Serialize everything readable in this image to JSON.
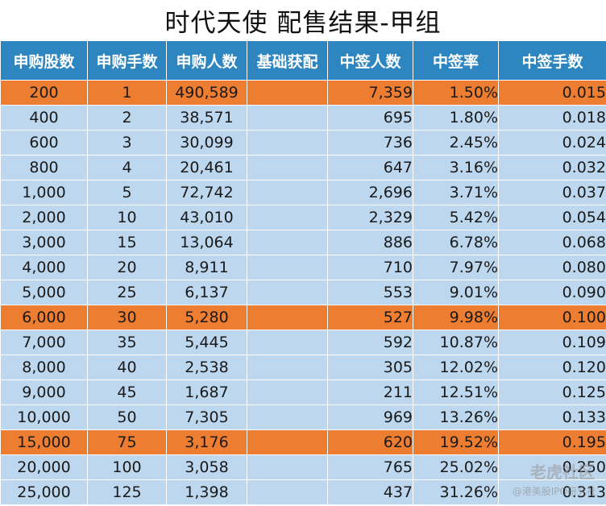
{
  "title": "时代天使 配售结果-甲组",
  "headers": [
    "申购股数",
    "申购手数",
    "申购人数",
    "基础获配",
    "中签人数",
    "中签率",
    "中签手数"
  ],
  "rows": [
    {
      "shares": "200",
      "lots": "1",
      "applicants": "490,589",
      "base": "",
      "winners": "7,359",
      "rate": "1.50%",
      "win_lots": "0.015",
      "highlight": true
    },
    {
      "shares": "400",
      "lots": "2",
      "applicants": "38,571",
      "base": "",
      "winners": "695",
      "rate": "1.80%",
      "win_lots": "0.018",
      "highlight": false
    },
    {
      "shares": "600",
      "lots": "3",
      "applicants": "30,099",
      "base": "",
      "winners": "736",
      "rate": "2.45%",
      "win_lots": "0.024",
      "highlight": false
    },
    {
      "shares": "800",
      "lots": "4",
      "applicants": "20,461",
      "base": "",
      "winners": "647",
      "rate": "3.16%",
      "win_lots": "0.032",
      "highlight": false
    },
    {
      "shares": "1,000",
      "lots": "5",
      "applicants": "72,742",
      "base": "",
      "winners": "2,696",
      "rate": "3.71%",
      "win_lots": "0.037",
      "highlight": false
    },
    {
      "shares": "2,000",
      "lots": "10",
      "applicants": "43,010",
      "base": "",
      "winners": "2,329",
      "rate": "5.42%",
      "win_lots": "0.054",
      "highlight": false
    },
    {
      "shares": "3,000",
      "lots": "15",
      "applicants": "13,064",
      "base": "",
      "winners": "886",
      "rate": "6.78%",
      "win_lots": "0.068",
      "highlight": false
    },
    {
      "shares": "4,000",
      "lots": "20",
      "applicants": "8,911",
      "base": "",
      "winners": "710",
      "rate": "7.97%",
      "win_lots": "0.080",
      "highlight": false
    },
    {
      "shares": "5,000",
      "lots": "25",
      "applicants": "6,137",
      "base": "",
      "winners": "553",
      "rate": "9.01%",
      "win_lots": "0.090",
      "highlight": false
    },
    {
      "shares": "6,000",
      "lots": "30",
      "applicants": "5,280",
      "base": "",
      "winners": "527",
      "rate": "9.98%",
      "win_lots": "0.100",
      "highlight": true
    },
    {
      "shares": "7,000",
      "lots": "35",
      "applicants": "5,445",
      "base": "",
      "winners": "592",
      "rate": "10.87%",
      "win_lots": "0.109",
      "highlight": false
    },
    {
      "shares": "8,000",
      "lots": "40",
      "applicants": "2,538",
      "base": "",
      "winners": "305",
      "rate": "12.02%",
      "win_lots": "0.120",
      "highlight": false
    },
    {
      "shares": "9,000",
      "lots": "45",
      "applicants": "1,687",
      "base": "",
      "winners": "211",
      "rate": "12.51%",
      "win_lots": "0.125",
      "highlight": false
    },
    {
      "shares": "10,000",
      "lots": "50",
      "applicants": "7,305",
      "base": "",
      "winners": "969",
      "rate": "13.26%",
      "win_lots": "0.133",
      "highlight": false
    },
    {
      "shares": "15,000",
      "lots": "75",
      "applicants": "3,176",
      "base": "",
      "winners": "620",
      "rate": "19.52%",
      "win_lots": "0.195",
      "highlight": true
    },
    {
      "shares": "20,000",
      "lots": "100",
      "applicants": "3,058",
      "base": "",
      "winners": "765",
      "rate": "25.02%",
      "win_lots": "0.250",
      "highlight": false
    },
    {
      "shares": "25,000",
      "lots": "125",
      "applicants": "1,398",
      "base": "",
      "winners": "437",
      "rate": "31.26%",
      "win_lots": "0.313",
      "highlight": false
    }
  ],
  "watermark": {
    "line1": "老虎社区",
    "line2": "@港美股IPO研究社"
  },
  "colors": {
    "header": "#2e86c1",
    "row": "#bdd7ee",
    "highlight": "#ed7d31"
  }
}
